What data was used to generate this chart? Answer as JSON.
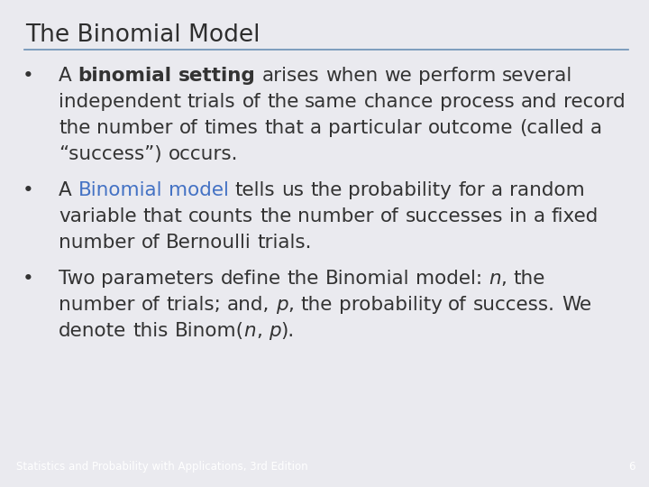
{
  "title": "The Binomial Model",
  "title_color": "#2E2E2E",
  "bg_color": "#EAEAEF",
  "footer_bg_color": "#1F3A8A",
  "footer_text": "Statistics and Probability with Applications, 3rd Edition",
  "footer_page": "6",
  "footer_color": "#FFFFFF",
  "line_color": "#6A8FB5",
  "text_color": "#333333",
  "blue_color": "#4472C4",
  "title_fontsize": 19,
  "body_fontsize": 15.5,
  "footer_fontsize": 8.5,
  "bullet1": [
    {
      "t": "A ",
      "bold": false,
      "italic": false,
      "blue": false
    },
    {
      "t": "binomial setting",
      "bold": true,
      "italic": false,
      "blue": false
    },
    {
      "t": " arises when we perform several independent trials of the same chance process and record the number of times that a particular outcome (called a “success”) occurs.",
      "bold": false,
      "italic": false,
      "blue": false
    }
  ],
  "bullet2": [
    {
      "t": "A ",
      "bold": false,
      "italic": false,
      "blue": false
    },
    {
      "t": "Binomial model",
      "bold": false,
      "italic": false,
      "blue": true
    },
    {
      "t": " tells us the probability for a random variable that counts the number of successes in a fixed number of Bernoulli trials.",
      "bold": false,
      "italic": false,
      "blue": false
    }
  ],
  "bullet3": [
    {
      "t": "Two parameters define the Binomial model: ",
      "bold": false,
      "italic": false,
      "blue": false
    },
    {
      "t": "n",
      "bold": false,
      "italic": true,
      "blue": false
    },
    {
      "t": ", the number of trials; and, ",
      "bold": false,
      "italic": false,
      "blue": false
    },
    {
      "t": "p",
      "bold": false,
      "italic": true,
      "blue": false
    },
    {
      "t": ", the probability of success. We denote this Binom(",
      "bold": false,
      "italic": false,
      "blue": false
    },
    {
      "t": "n",
      "bold": false,
      "italic": true,
      "blue": false
    },
    {
      "t": ", ",
      "bold": false,
      "italic": false,
      "blue": false
    },
    {
      "t": "p",
      "bold": false,
      "italic": true,
      "blue": false
    },
    {
      "t": ").",
      "bold": false,
      "italic": false,
      "blue": false
    }
  ]
}
